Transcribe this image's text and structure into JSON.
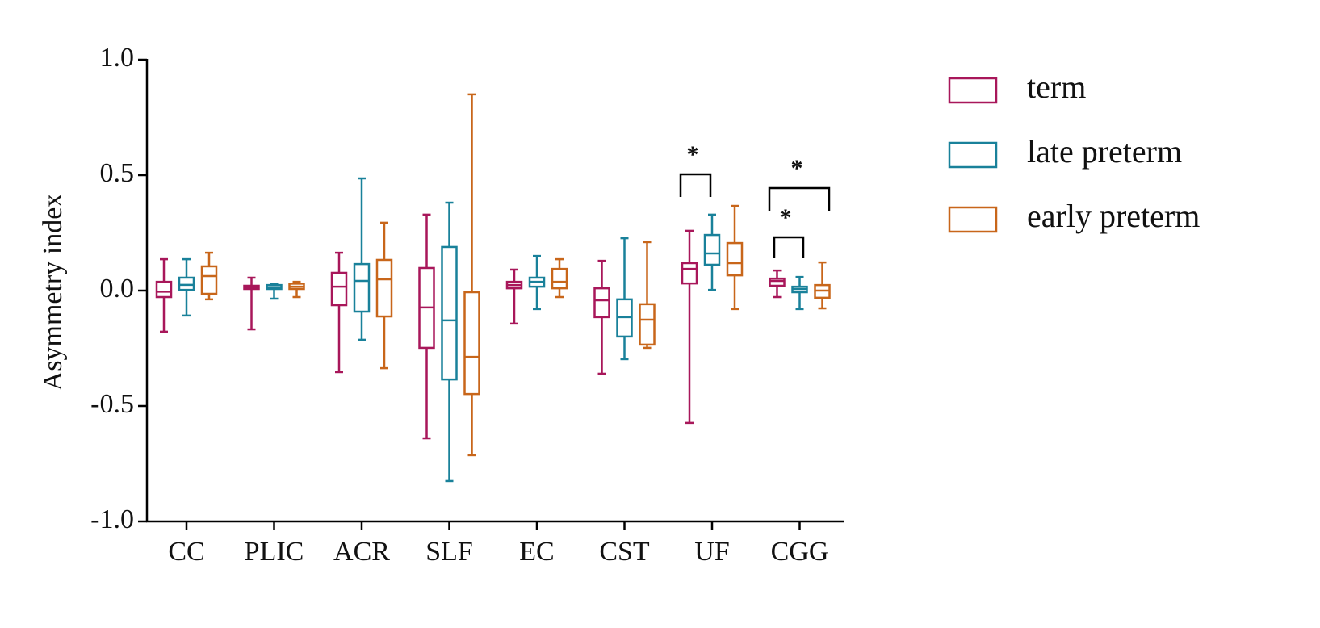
{
  "chart_data": {
    "type": "box",
    "y_label": "Asymmetry index",
    "categories": [
      "CC",
      "PLIC",
      "ACR",
      "SLF",
      "EC",
      "CST",
      "UF",
      "CGG"
    ],
    "ylim": [
      -1.0,
      1.0
    ],
    "yticks": [
      {
        "value": 1.0,
        "label": "1.0"
      },
      {
        "value": 0.5,
        "label": "0.5"
      },
      {
        "value": 0.0,
        "label": "0.0"
      },
      {
        "value": -0.5,
        "label": "-0.5"
      },
      {
        "value": -1.0,
        "label": "-1.0"
      }
    ],
    "legend": "right",
    "series": [
      {
        "name": "term",
        "color": "#a8175a",
        "min": [
          -0.178,
          -0.168,
          -0.353,
          -0.64,
          -0.143,
          -0.36,
          -0.573,
          -0.028
        ],
        "q1": [
          -0.028,
          0.007,
          -0.063,
          -0.248,
          0.01,
          -0.115,
          0.031,
          0.021
        ],
        "median": [
          -0.005,
          0.014,
          0.017,
          -0.073,
          0.024,
          -0.042,
          0.094,
          0.042
        ],
        "q3": [
          0.038,
          0.021,
          0.077,
          0.098,
          0.038,
          0.01,
          0.119,
          0.052
        ],
        "max": [
          0.136,
          0.056,
          0.164,
          0.329,
          0.091,
          0.129,
          0.259,
          0.087
        ]
      },
      {
        "name": "late preterm",
        "color": "#19819a",
        "min": [
          -0.108,
          -0.035,
          -0.213,
          -0.825,
          -0.08,
          -0.297,
          0.003,
          -0.08
        ],
        "q1": [
          0.003,
          0.007,
          -0.091,
          -0.385,
          0.017,
          -0.199,
          0.112,
          -0.007
        ],
        "median": [
          0.025,
          0.014,
          0.042,
          -0.129,
          0.038,
          -0.115,
          0.161,
          0.007
        ],
        "q3": [
          0.056,
          0.024,
          0.115,
          0.189,
          0.056,
          -0.038,
          0.241,
          0.017
        ],
        "max": [
          0.136,
          0.03,
          0.486,
          0.381,
          0.15,
          0.227,
          0.329,
          0.059
        ]
      },
      {
        "name": "early preterm",
        "color": "#c8661a",
        "min": [
          -0.038,
          -0.028,
          -0.336,
          -0.713,
          -0.028,
          -0.248,
          -0.08,
          -0.077
        ],
        "q1": [
          -0.014,
          0.007,
          -0.112,
          -0.448,
          0.01,
          -0.234,
          0.066,
          -0.031
        ],
        "median": [
          0.063,
          0.017,
          0.049,
          -0.287,
          0.038,
          -0.126,
          0.119,
          0.0
        ],
        "q3": [
          0.105,
          0.03,
          0.133,
          -0.007,
          0.094,
          -0.059,
          0.206,
          0.024
        ],
        "max": [
          0.164,
          0.038,
          0.294,
          0.85,
          0.136,
          0.21,
          0.367,
          0.122
        ]
      }
    ],
    "annotations": [
      "*",
      "*",
      "*"
    ]
  }
}
